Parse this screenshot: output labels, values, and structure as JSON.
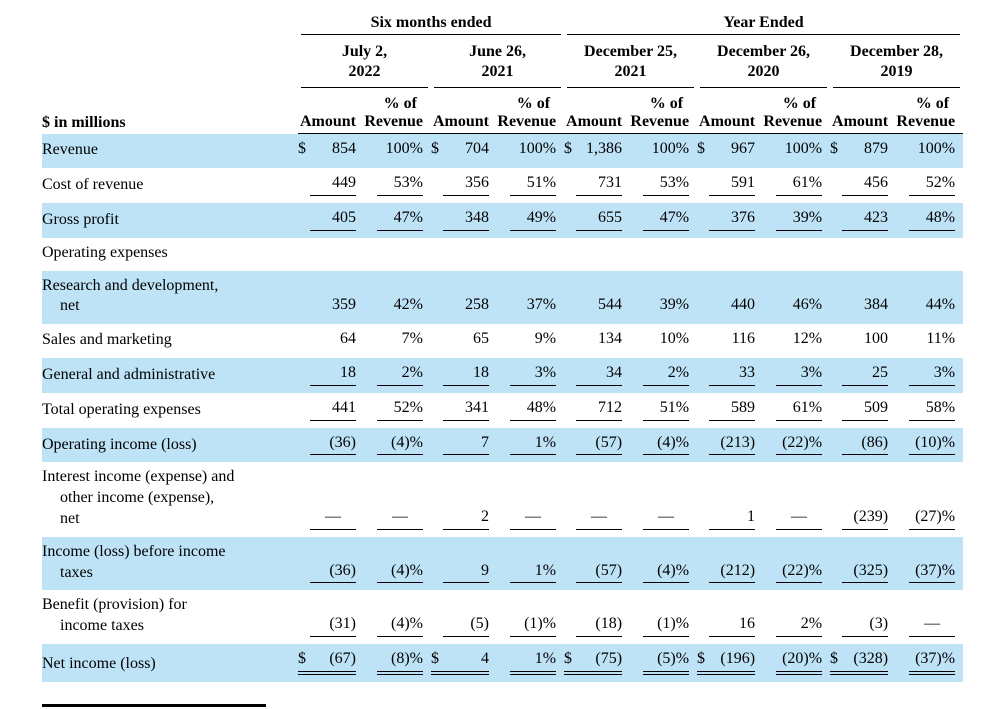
{
  "theme": {
    "highlight": "#bee3f7",
    "text": "#000000",
    "rule": "#000000"
  },
  "table": {
    "col_groups": [
      {
        "title": "Six months ended"
      },
      {
        "title": "Year Ended"
      }
    ],
    "periods": [
      {
        "line1": "July 2,",
        "line2": "2022"
      },
      {
        "line1": "June 26,",
        "line2": "2021"
      },
      {
        "line1": "December 25,",
        "line2": "2021"
      },
      {
        "line1": "December 26,",
        "line2": "2020"
      },
      {
        "line1": "December 28,",
        "line2": "2019"
      }
    ],
    "units_label": "$ in millions",
    "col_headers": {
      "amount": "Amount",
      "pct_top": "% of",
      "pct_bottom": "Revenue"
    },
    "rows": [
      {
        "label_lines": [
          "Revenue"
        ],
        "highlight": true,
        "underline": "none",
        "cells": [
          "$ 854",
          "100%",
          "$ 704",
          "100%",
          "$ 1,386",
          "100%",
          "$ 967",
          "100%",
          "$ 879",
          "100%"
        ]
      },
      {
        "label_lines": [
          "Cost of revenue"
        ],
        "highlight": false,
        "underline": "single",
        "cells": [
          "449",
          "53%",
          "356",
          "51%",
          "731",
          "53%",
          "591",
          "61%",
          "456",
          "52%"
        ]
      },
      {
        "label_lines": [
          "Gross profit"
        ],
        "highlight": true,
        "underline": "single",
        "cells": [
          "405",
          "47%",
          "348",
          "49%",
          "655",
          "47%",
          "376",
          "39%",
          "423",
          "48%"
        ]
      },
      {
        "label_lines": [
          "Operating expenses"
        ],
        "highlight": false,
        "underline": "none",
        "cells": [
          "",
          "",
          "",
          "",
          "",
          "",
          "",
          "",
          "",
          ""
        ]
      },
      {
        "label_lines": [
          "Research and development,",
          "net"
        ],
        "highlight": true,
        "underline": "none",
        "cells": [
          "359",
          "42%",
          "258",
          "37%",
          "544",
          "39%",
          "440",
          "46%",
          "384",
          "44%"
        ]
      },
      {
        "label_lines": [
          "Sales and marketing"
        ],
        "highlight": false,
        "underline": "none",
        "cells": [
          "64",
          "7%",
          "65",
          "9%",
          "134",
          "10%",
          "116",
          "12%",
          "100",
          "11%"
        ]
      },
      {
        "label_lines": [
          "General and administrative"
        ],
        "highlight": true,
        "underline": "single",
        "cells": [
          "18",
          "2%",
          "18",
          "3%",
          "34",
          "2%",
          "33",
          "3%",
          "25",
          "3%"
        ]
      },
      {
        "label_lines": [
          "Total operating expenses"
        ],
        "highlight": false,
        "underline": "single",
        "cells": [
          "441",
          "52%",
          "341",
          "48%",
          "712",
          "51%",
          "589",
          "61%",
          "509",
          "58%"
        ]
      },
      {
        "label_lines": [
          "Operating income (loss)"
        ],
        "highlight": true,
        "underline": "single",
        "cells": [
          "(36)",
          "(4)%",
          "7",
          "1%",
          "(57)",
          "(4)%",
          "(213)",
          "(22)%",
          "(86)",
          "(10)%"
        ]
      },
      {
        "label_lines": [
          "Interest income (expense) and",
          "other income (expense),",
          "net"
        ],
        "highlight": false,
        "underline": "single",
        "cells": [
          "—",
          "—",
          "2",
          "—",
          "—",
          "—",
          "1",
          "—",
          "(239)",
          "(27)%"
        ]
      },
      {
        "label_lines": [
          "Income (loss) before income",
          "taxes"
        ],
        "highlight": true,
        "underline": "single",
        "cells": [
          "(36)",
          "(4)%",
          "9",
          "1%",
          "(57)",
          "(4)%",
          "(212)",
          "(22)%",
          "(325)",
          "(37)%"
        ]
      },
      {
        "label_lines": [
          "Benefit (provision) for",
          "income taxes"
        ],
        "highlight": false,
        "underline": "single",
        "cells": [
          "(31)",
          "(4)%",
          "(5)",
          "(1)%",
          "(18)",
          "(1)%",
          "16",
          "2%",
          "(3)",
          "—"
        ]
      },
      {
        "label_lines": [
          "Net income (loss)"
        ],
        "highlight": true,
        "underline": "double",
        "cells": [
          "$ (67)",
          "(8)%",
          "$ 4",
          "1%",
          "$ (75)",
          "(5)%",
          "$ (196)",
          "(20)%",
          "$ (328)",
          "(37)%"
        ]
      }
    ]
  }
}
